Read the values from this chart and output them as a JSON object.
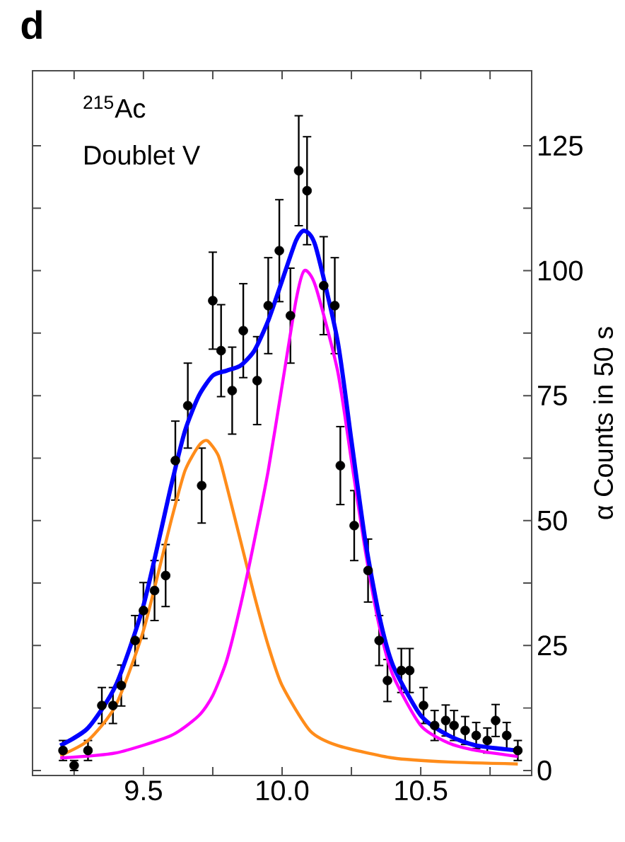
{
  "chart_data": {
    "type": "scatter",
    "title": "d",
    "ylabel": "α Counts in 50 s",
    "annotations": [
      "$^{215}$Ac",
      "Doublet V"
    ],
    "xlim": [
      9.1,
      10.9
    ],
    "ylim": [
      -1,
      140
    ],
    "xticks": [
      {
        "value": 9.25,
        "label": null
      },
      9.5,
      {
        "value": 9.75,
        "label": null
      },
      {
        "value": 10,
        "label": "10.0"
      },
      {
        "value": 10.25,
        "label": null
      },
      10.5,
      {
        "value": 10.75,
        "label": null
      }
    ],
    "yticks": [
      0,
      {
        "value": 12.5,
        "label": null
      },
      25,
      {
        "value": 37.5,
        "label": null
      },
      50,
      {
        "value": 62.5,
        "label": null
      },
      75,
      {
        "value": 87.5,
        "label": null
      },
      100,
      {
        "value": 112.5,
        "label": null
      },
      125
    ],
    "grid": false,
    "series": [
      {
        "color": "#000000",
        "marker": "circle",
        "x": [
          9.21,
          9.25,
          9.3,
          9.35,
          9.39,
          9.42,
          9.47,
          9.5,
          9.54,
          9.58,
          9.615,
          9.66,
          9.71,
          9.75,
          9.78,
          9.82,
          9.86,
          9.91,
          9.95,
          9.99,
          10.03,
          10.06,
          10.09,
          10.15,
          10.19,
          10.21,
          10.26,
          10.31,
          10.35,
          10.38,
          10.43,
          10.46,
          10.51,
          10.55,
          10.59,
          10.62,
          10.66,
          10.7,
          10.74,
          10.77,
          10.81,
          10.85
        ],
        "values": [
          4,
          1,
          4,
          13,
          13,
          17,
          26,
          32,
          36,
          39,
          62,
          73,
          57,
          94,
          84,
          76,
          88,
          78,
          93,
          104,
          91,
          120,
          116,
          97,
          93,
          61,
          49,
          40,
          26,
          18,
          20,
          20,
          13,
          9,
          10,
          9,
          8,
          7,
          6,
          10,
          7,
          4
        ],
        "errors": [
          2,
          1,
          2,
          3.6,
          3.6,
          4.1,
          5,
          5.6,
          6,
          6.2,
          7.9,
          8.5,
          7.5,
          9.7,
          9.2,
          8.7,
          9.4,
          8.8,
          9.6,
          10.2,
          9.5,
          11,
          10.8,
          9.8,
          9.6,
          7.8,
          7,
          6.3,
          5,
          4.2,
          4.4,
          4.4,
          3.6,
          3,
          3.1,
          3,
          2.8,
          2.6,
          2.5,
          3.2,
          2.6,
          2
        ]
      },
      {
        "type": "line",
        "color": "#ff8c1a",
        "marker": "none",
        "x": [
          9.2,
          9.3,
          9.4,
          9.5,
          9.6,
          9.65,
          9.7,
          9.73,
          9.77,
          9.8,
          9.85,
          9.9,
          9.95,
          10.0,
          10.1,
          10.2,
          10.4,
          10.6,
          10.85
        ],
        "values": [
          3,
          6,
          13,
          28,
          50,
          60,
          65,
          66,
          63,
          57,
          46,
          35,
          25,
          17,
          8,
          5,
          2.5,
          1.7,
          1.3
        ]
      },
      {
        "type": "line",
        "color": "#ff00ff",
        "marker": "none",
        "x": [
          9.2,
          9.4,
          9.6,
          9.7,
          9.75,
          9.8,
          9.85,
          9.9,
          9.95,
          10.0,
          10.05,
          10.08,
          10.12,
          10.2,
          10.25,
          10.3,
          10.35,
          10.4,
          10.5,
          10.6,
          10.7,
          10.85
        ],
        "values": [
          2.5,
          3.5,
          7,
          11,
          15,
          22,
          33,
          46,
          60,
          77,
          94,
          100,
          97,
          80,
          62,
          44,
          29,
          19,
          9,
          5.5,
          4,
          2.8
        ]
      },
      {
        "type": "line",
        "color": "#0000ff",
        "marker": "none",
        "x": [
          9.2,
          9.3,
          9.4,
          9.5,
          9.6,
          9.65,
          9.7,
          9.75,
          9.8,
          9.85,
          9.9,
          9.95,
          10.0,
          10.05,
          10.08,
          10.12,
          10.2,
          10.25,
          10.3,
          10.35,
          10.4,
          10.5,
          10.6,
          10.7,
          10.85
        ],
        "values": [
          5,
          8.5,
          17,
          33,
          57,
          68,
          75,
          79,
          80,
          81,
          84,
          90,
          98,
          106,
          108,
          105,
          86,
          66,
          46,
          31,
          21,
          11,
          7,
          5,
          4
        ]
      }
    ]
  }
}
